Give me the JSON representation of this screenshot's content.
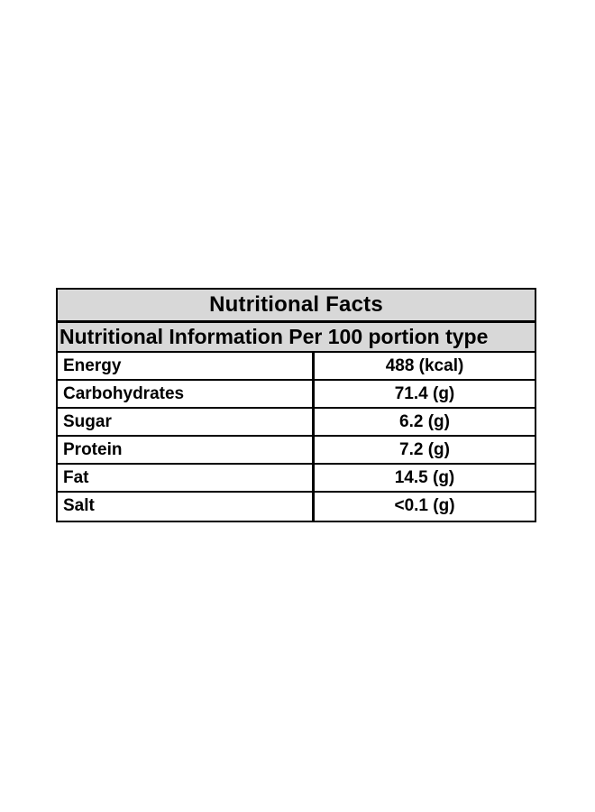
{
  "page": {
    "background_color": "#ffffff"
  },
  "table": {
    "title": "Nutritional Facts",
    "subtitle": "Nutritional Information Per 100 portion type",
    "header_background_color": "#d8d8d8",
    "border_color": "#000000",
    "text_color": "#000000",
    "rows": [
      {
        "label": "Energy",
        "value": "488 (kcal)"
      },
      {
        "label": "Carbohydrates",
        "value": "71.4 (g)"
      },
      {
        "label": "Sugar",
        "value": "6.2 (g)"
      },
      {
        "label": "Protein",
        "value": "7.2 (g)"
      },
      {
        "label": "Fat",
        "value": "14.5 (g)"
      },
      {
        "label": "Salt",
        "value": "<0.1 (g)"
      }
    ]
  }
}
